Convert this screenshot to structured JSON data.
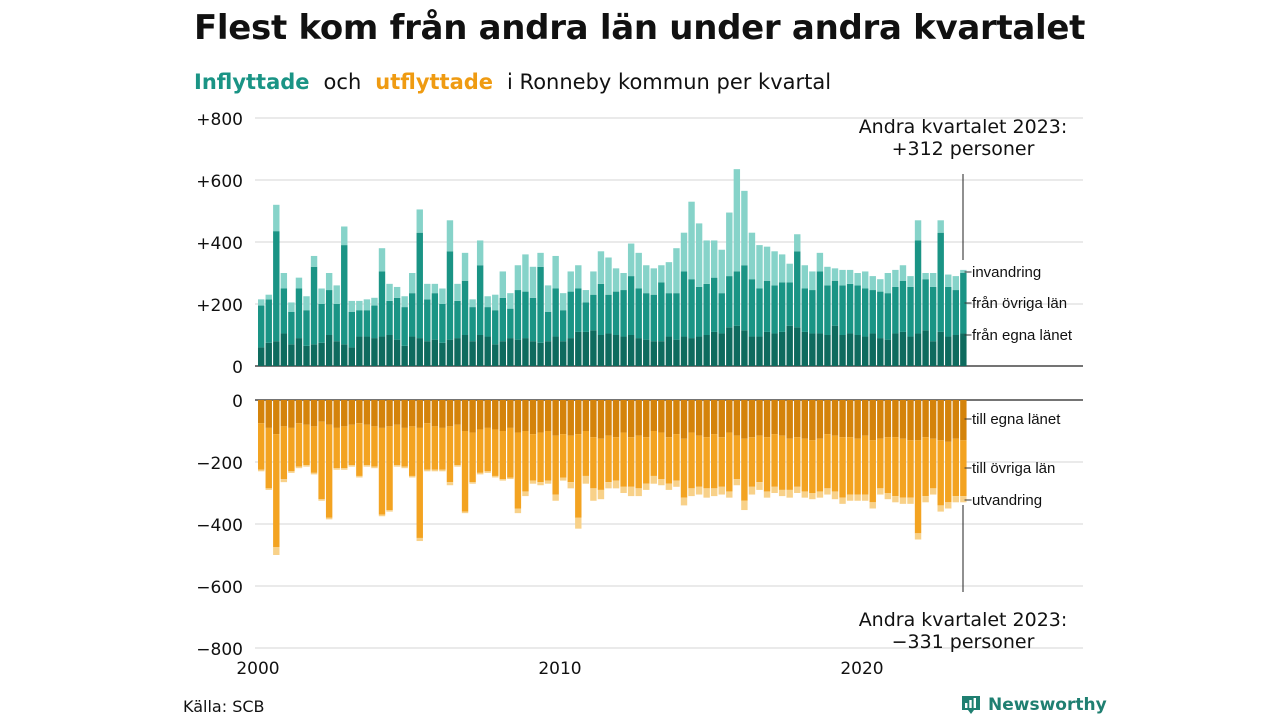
{
  "title": "Flest kom från andra län under andra kvartalet",
  "subtitle": {
    "inflow": "Inflyttade",
    "and": "och",
    "outflow": "utflyttade",
    "rest": "i Ronneby  kommun  per  kvartal"
  },
  "source": "Källa: SCB",
  "brand": "Newsworthy",
  "colors": {
    "in_own": "#0e6b5e",
    "in_other": "#1a9485",
    "in_immig": "#86d3c9",
    "out_own": "#d4830b",
    "out_other": "#f3a321",
    "out_emig": "#f8d189"
  },
  "annotations": {
    "top": [
      "Andra kvartalet 2023:",
      "+312 personer"
    ],
    "bottom": [
      "Andra kvartalet 2023:",
      "−331 personer"
    ]
  },
  "chart_data": [
    {
      "type": "bar",
      "stacked": true,
      "title": "Inflyttade",
      "x_ticks": [
        "2000",
        "2010",
        "2020"
      ],
      "y_ticks": [
        "+800",
        "+600",
        "+400",
        "+200",
        "0"
      ],
      "ylim": [
        0,
        800
      ],
      "series_labels": [
        "från egna länet",
        "från övriga län",
        "invandring"
      ],
      "first_quarter": "2000 Q1",
      "last_quarter": "2023 Q2",
      "quarters": 94,
      "series": [
        {
          "name": "från egna länet",
          "values": [
            60,
            75,
            80,
            105,
            70,
            90,
            65,
            70,
            75,
            100,
            80,
            70,
            60,
            95,
            95,
            90,
            95,
            100,
            85,
            65,
            95,
            90,
            80,
            85,
            75,
            85,
            90,
            100,
            80,
            100,
            95,
            70,
            80,
            90,
            85,
            90,
            80,
            75,
            80,
            95,
            80,
            90,
            110,
            110,
            115,
            100,
            105,
            100,
            95,
            100,
            90,
            85,
            80,
            80,
            95,
            85,
            95,
            90,
            95,
            100,
            110,
            105,
            125,
            130,
            115,
            95,
            95,
            110,
            105,
            110,
            130,
            125,
            110,
            105,
            105,
            100,
            130,
            100,
            105,
            100,
            95,
            105,
            90,
            85,
            105,
            110,
            95,
            105,
            115,
            80,
            110,
            95,
            100,
            105
          ]
        },
        {
          "name": "från övriga län",
          "values": [
            135,
            140,
            355,
            145,
            105,
            160,
            115,
            250,
            125,
            145,
            120,
            320,
            115,
            85,
            85,
            105,
            210,
            110,
            135,
            125,
            140,
            340,
            135,
            150,
            125,
            285,
            120,
            175,
            110,
            225,
            95,
            110,
            140,
            95,
            160,
            150,
            140,
            245,
            95,
            155,
            100,
            150,
            140,
            95,
            115,
            165,
            125,
            140,
            150,
            190,
            160,
            150,
            150,
            190,
            140,
            150,
            210,
            190,
            160,
            165,
            175,
            130,
            165,
            175,
            210,
            185,
            155,
            165,
            155,
            160,
            140,
            245,
            140,
            140,
            200,
            160,
            145,
            160,
            160,
            160,
            155,
            140,
            150,
            150,
            150,
            165,
            160,
            300,
            165,
            175,
            320,
            160,
            145,
            195
          ]
        },
        {
          "name": "invandring",
          "values": [
            20,
            15,
            85,
            50,
            30,
            35,
            45,
            35,
            50,
            55,
            60,
            60,
            35,
            30,
            35,
            25,
            75,
            55,
            35,
            35,
            65,
            75,
            50,
            30,
            50,
            100,
            55,
            90,
            25,
            80,
            35,
            50,
            85,
            50,
            80,
            120,
            100,
            45,
            85,
            105,
            55,
            65,
            75,
            40,
            75,
            105,
            120,
            75,
            55,
            105,
            115,
            90,
            85,
            55,
            100,
            145,
            125,
            250,
            205,
            140,
            120,
            140,
            205,
            330,
            240,
            150,
            140,
            110,
            110,
            90,
            60,
            55,
            75,
            60,
            60,
            60,
            40,
            50,
            45,
            40,
            55,
            45,
            40,
            65,
            55,
            50,
            35,
            65,
            20,
            45,
            40,
            40,
            45,
            10
          ]
        }
      ]
    },
    {
      "type": "bar",
      "stacked": true,
      "title": "Utflyttade",
      "y_ticks": [
        "0",
        "−200",
        "−400",
        "−600",
        "−800"
      ],
      "ylim": [
        -800,
        0
      ],
      "series_labels": [
        "till egna länet",
        "till övriga län",
        "utvandring"
      ],
      "first_quarter": "2000 Q1",
      "last_quarter": "2023 Q2",
      "quarters": 94,
      "series": [
        {
          "name": "till egna länet",
          "values": [
            -75,
            -90,
            -110,
            -85,
            -90,
            -75,
            -80,
            -85,
            -70,
            -80,
            -90,
            -85,
            -80,
            -75,
            -80,
            -85,
            -90,
            -85,
            -80,
            -90,
            -85,
            -90,
            -75,
            -85,
            -90,
            -85,
            -80,
            -100,
            -105,
            -95,
            -90,
            -95,
            -100,
            -90,
            -105,
            -100,
            -110,
            -105,
            -100,
            -115,
            -110,
            -115,
            -110,
            -100,
            -120,
            -125,
            -115,
            -120,
            -105,
            -120,
            -115,
            -120,
            -100,
            -105,
            -120,
            -110,
            -125,
            -105,
            -115,
            -120,
            -110,
            -120,
            -105,
            -115,
            -125,
            -120,
            -115,
            -120,
            -110,
            -115,
            -125,
            -120,
            -125,
            -130,
            -125,
            -110,
            -115,
            -120,
            -120,
            -125,
            -115,
            -130,
            -125,
            -120,
            -120,
            -125,
            -130,
            -130,
            -120,
            -125,
            -130,
            -135,
            -125,
            -130
          ]
        },
        {
          "name": "till övriga län",
          "values": [
            -150,
            -195,
            -365,
            -170,
            -140,
            -140,
            -130,
            -150,
            -250,
            -300,
            -130,
            -135,
            -130,
            -170,
            -130,
            -130,
            -280,
            -270,
            -130,
            -125,
            -160,
            -355,
            -150,
            -140,
            -135,
            -180,
            -130,
            -260,
            -160,
            -140,
            -140,
            -150,
            -155,
            -160,
            -245,
            -195,
            -150,
            -160,
            -160,
            -190,
            -140,
            -150,
            -270,
            -145,
            -165,
            -165,
            -150,
            -140,
            -175,
            -160,
            -170,
            -150,
            -145,
            -150,
            -150,
            -150,
            -190,
            -180,
            -165,
            -165,
            -175,
            -160,
            -190,
            -140,
            -200,
            -160,
            -150,
            -175,
            -170,
            -175,
            -165,
            -160,
            -170,
            -170,
            -170,
            -175,
            -180,
            -195,
            -185,
            -180,
            -190,
            -200,
            -160,
            -180,
            -190,
            -190,
            -185,
            -300,
            -190,
            -160,
            -210,
            -195,
            -185,
            -180
          ]
        },
        {
          "name": "utvandring",
          "values": [
            -5,
            -5,
            -25,
            -10,
            -5,
            -5,
            -5,
            -5,
            -5,
            -5,
            -5,
            -5,
            -5,
            -5,
            -5,
            -5,
            -5,
            -5,
            -5,
            -5,
            -5,
            -10,
            -5,
            -5,
            -5,
            -10,
            -5,
            -5,
            -5,
            -5,
            -5,
            -5,
            -5,
            -5,
            -15,
            -15,
            -10,
            -10,
            -10,
            -20,
            -10,
            -20,
            -35,
            -25,
            -40,
            -30,
            -20,
            -25,
            -20,
            -30,
            -25,
            -20,
            -25,
            -20,
            -20,
            -20,
            -25,
            -25,
            -25,
            -30,
            -25,
            -25,
            -20,
            -20,
            -30,
            -25,
            -25,
            -20,
            -20,
            -20,
            -25,
            -20,
            -20,
            -20,
            -20,
            -20,
            -25,
            -20,
            -20,
            -20,
            -20,
            -20,
            -20,
            -20,
            -20,
            -20,
            -20,
            -20,
            -20,
            -20,
            -20,
            -20,
            -20,
            -20
          ]
        }
      ]
    }
  ]
}
